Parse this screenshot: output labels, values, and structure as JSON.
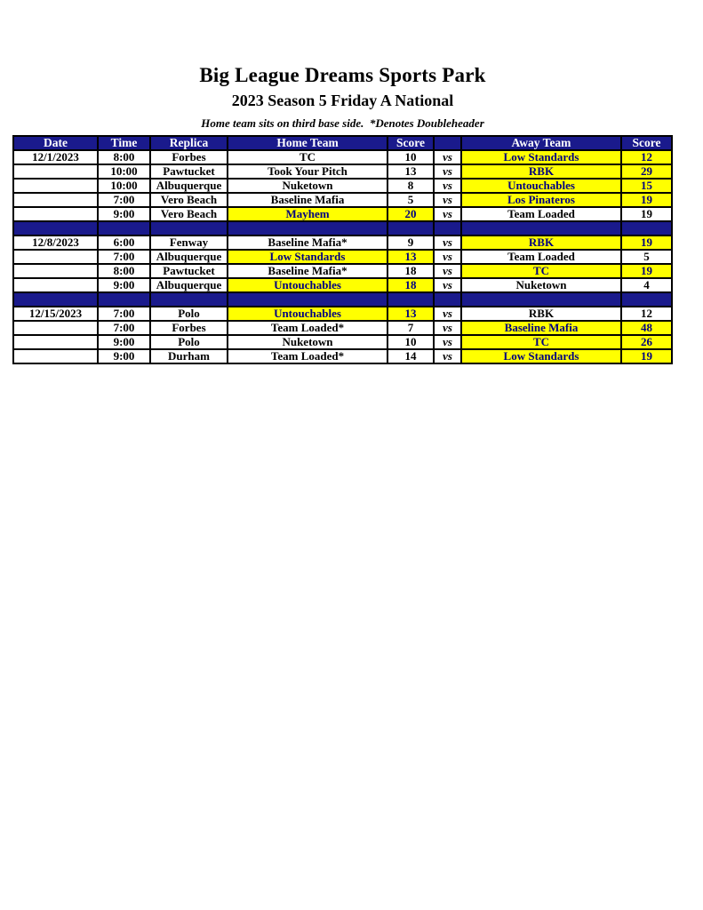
{
  "page": {
    "title": "Big League Dreams Sports Park",
    "subtitle": "2023 Season 5 Friday A National",
    "note": "Home team sits on third base side.  *Denotes Doubleheader"
  },
  "table": {
    "headers": {
      "date": "Date",
      "time": "Time",
      "replica": "Replica",
      "home": "Home Team",
      "home_score": "Score",
      "vs": "",
      "away": "Away Team",
      "away_score": "Score"
    },
    "vs_label": "vs",
    "colors": {
      "header_bg": "#1a1a8c",
      "header_text": "#ffffff",
      "separator_bg": "#1a1a8c",
      "highlight_bg": "#ffff00",
      "highlight_text": "#000080",
      "body_text": "#000000",
      "border": "#000000"
    },
    "groups": [
      {
        "date": "12/1/2023",
        "rows": [
          {
            "date": "12/1/2023",
            "time": "8:00",
            "replica": "Forbes",
            "home": "TC",
            "home_score": "10",
            "away": "Low Standards",
            "away_score": "12",
            "winner": "away"
          },
          {
            "date": "",
            "time": "10:00",
            "replica": "Pawtucket",
            "home": "Took Your Pitch",
            "home_score": "13",
            "away": "RBK",
            "away_score": "29",
            "winner": "away"
          },
          {
            "date": "",
            "time": "10:00",
            "replica": "Albuquerque",
            "home": "Nuketown",
            "home_score": "8",
            "away": "Untouchables",
            "away_score": "15",
            "winner": "away"
          },
          {
            "date": "",
            "time": "7:00",
            "replica": "Vero Beach",
            "home": "Baseline Mafia",
            "home_score": "5",
            "away": "Los Pinateros",
            "away_score": "19",
            "winner": "away"
          },
          {
            "date": "",
            "time": "9:00",
            "replica": "Vero Beach",
            "home": "Mayhem",
            "home_score": "20",
            "away": "Team Loaded",
            "away_score": "19",
            "winner": "home"
          }
        ]
      },
      {
        "date": "12/8/2023",
        "rows": [
          {
            "date": "12/8/2023",
            "time": "6:00",
            "replica": "Fenway",
            "home": "Baseline Mafia*",
            "home_score": "9",
            "away": "RBK",
            "away_score": "19",
            "winner": "away"
          },
          {
            "date": "",
            "time": "7:00",
            "replica": "Albuquerque",
            "home": "Low Standards",
            "home_score": "13",
            "away": "Team Loaded",
            "away_score": "5",
            "winner": "home"
          },
          {
            "date": "",
            "time": "8:00",
            "replica": "Pawtucket",
            "home": "Baseline Mafia*",
            "home_score": "18",
            "away": "TC",
            "away_score": "19",
            "winner": "away"
          },
          {
            "date": "",
            "time": "9:00",
            "replica": "Albuquerque",
            "home": "Untouchables",
            "home_score": "18",
            "away": "Nuketown",
            "away_score": "4",
            "winner": "home"
          }
        ]
      },
      {
        "date": "12/15/2023",
        "rows": [
          {
            "date": "12/15/2023",
            "time": "7:00",
            "replica": "Polo",
            "home": "Untouchables",
            "home_score": "13",
            "away": "RBK",
            "away_score": "12",
            "winner": "home"
          },
          {
            "date": "",
            "time": "7:00",
            "replica": "Forbes",
            "home": "Team Loaded*",
            "home_score": "7",
            "away": "Baseline Mafia",
            "away_score": "48",
            "winner": "away"
          },
          {
            "date": "",
            "time": "9:00",
            "replica": "Polo",
            "home": "Nuketown",
            "home_score": "10",
            "away": "TC",
            "away_score": "26",
            "winner": "away"
          },
          {
            "date": "",
            "time": "9:00",
            "replica": "Durham",
            "home": "Team Loaded*",
            "home_score": "14",
            "away": "Low Standards",
            "away_score": "19",
            "winner": "away"
          }
        ]
      }
    ]
  }
}
